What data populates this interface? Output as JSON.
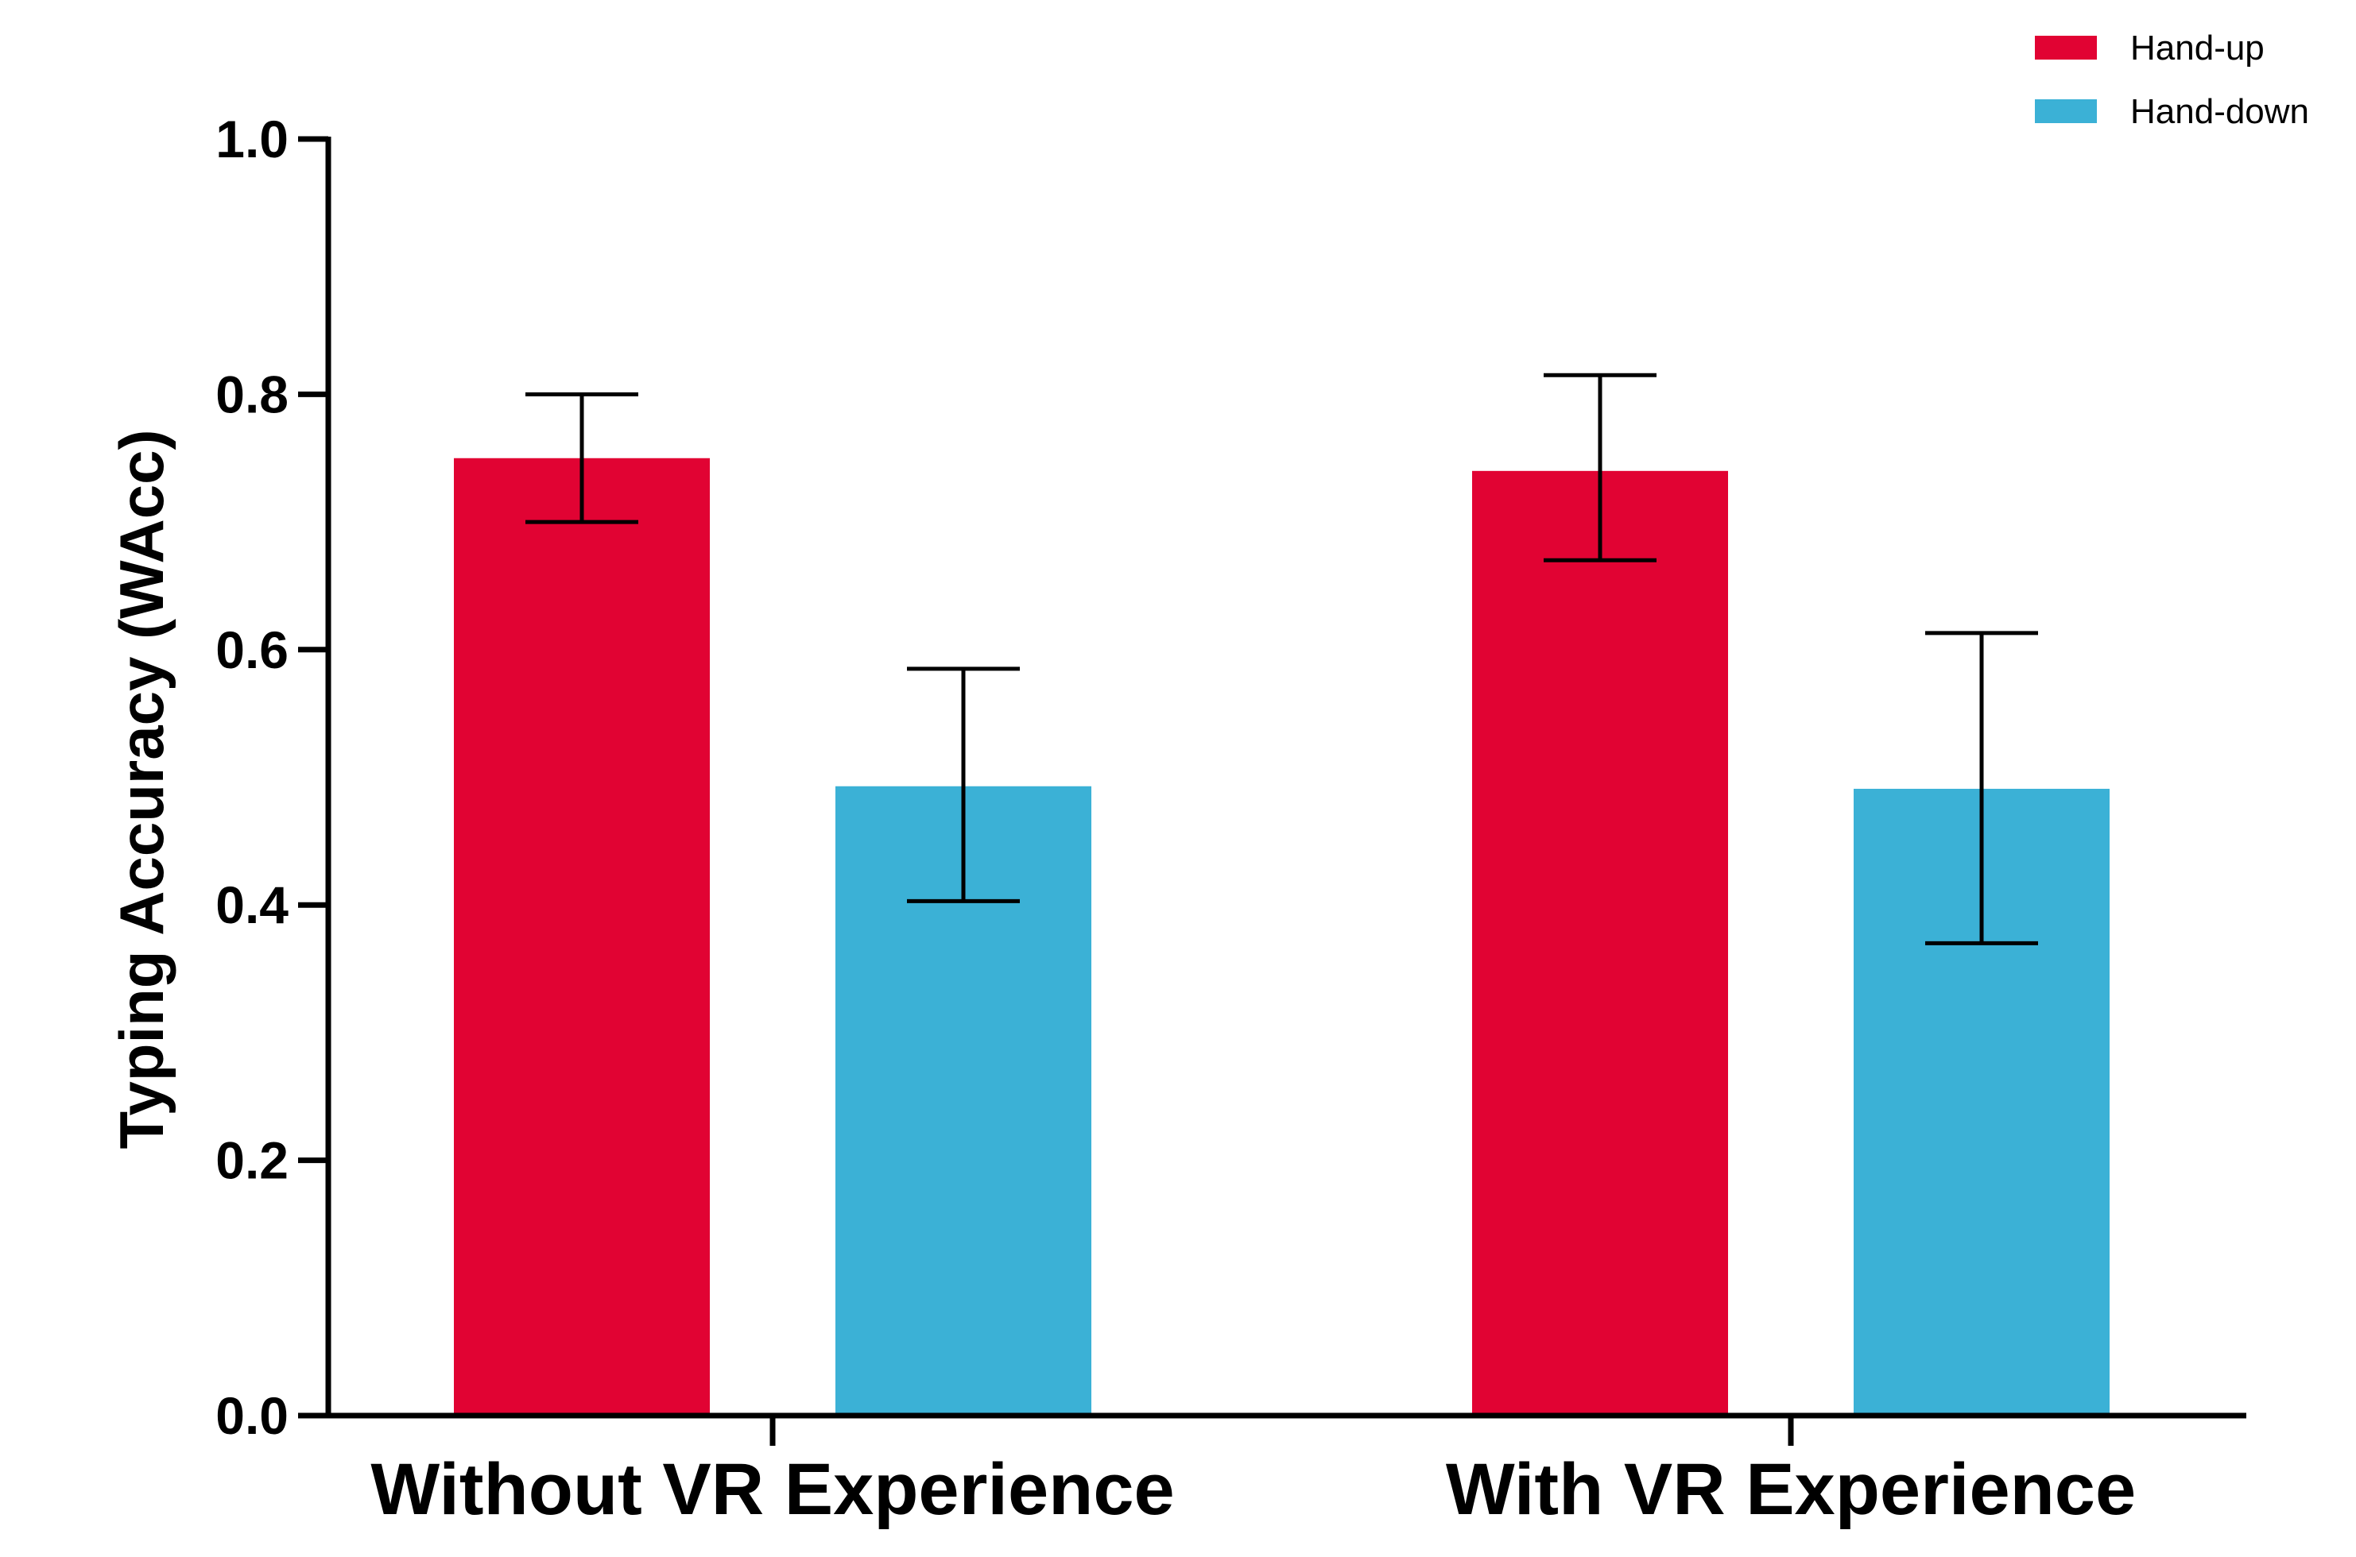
{
  "chart_data": {
    "type": "bar",
    "title": "",
    "xlabel": "",
    "ylabel": "Typing Accuracy (WAcc)",
    "ylim": [
      0.0,
      1.0
    ],
    "yticks": [
      0.0,
      0.2,
      0.4,
      0.6,
      0.8,
      1.0
    ],
    "ytick_labels": [
      "0.0",
      "0.2",
      "0.4",
      "0.6",
      "0.8",
      "1.0"
    ],
    "categories": [
      "Without VR Experience",
      "With VR Experience"
    ],
    "series": [
      {
        "name": "Hand-up",
        "color": "#E10333",
        "values": [
          0.75,
          0.74
        ],
        "err_low": [
          0.7,
          0.67
        ],
        "err_high": [
          0.8,
          0.815
        ]
      },
      {
        "name": "Hand-down",
        "color": "#3BB1D6",
        "values": [
          0.493,
          0.491
        ],
        "err_low": [
          0.403,
          0.37
        ],
        "err_high": [
          0.585,
          0.613
        ]
      }
    ],
    "legend_position": "top-right",
    "grid": false
  }
}
